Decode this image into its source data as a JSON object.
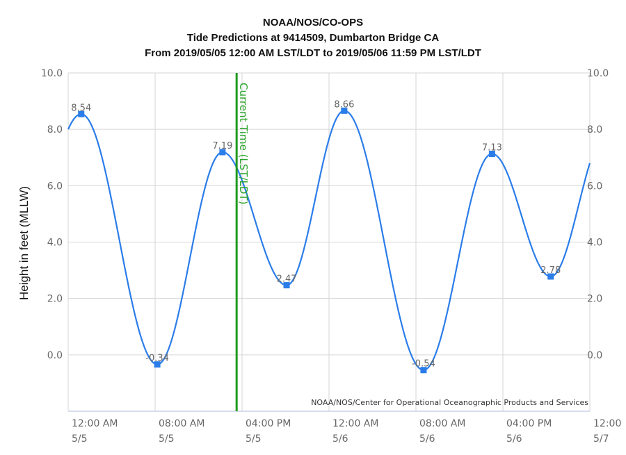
{
  "chart_data": {
    "type": "line",
    "title": [
      "NOAA/NOS/CO-OPS",
      "Tide Predictions at 9414509, Dumbarton Bridge CA",
      "From 2019/05/05 12:00 AM LST/LDT to 2019/05/06 11:59 PM LST/LDT"
    ],
    "ylabel": "Height in feet (MLLW)",
    "xlabel": "",
    "ylim": [
      -2.0,
      10.0
    ],
    "y_ticks": [
      "10.0",
      "8.0",
      "6.0",
      "4.0",
      "2.0",
      "0.0"
    ],
    "x_ticks": [
      {
        "time": "12:00 AM",
        "date": "5/5"
      },
      {
        "time": "08:00 AM",
        "date": "5/5"
      },
      {
        "time": "04:00 PM",
        "date": "5/5"
      },
      {
        "time": "12:00 AM",
        "date": "5/6"
      },
      {
        "time": "08:00 AM",
        "date": "5/6"
      },
      {
        "time": "04:00 PM",
        "date": "5/6"
      },
      {
        "time": "12:00",
        "date": "5/7"
      }
    ],
    "x_range_hours": [
      0,
      48
    ],
    "grid": true,
    "series": [
      {
        "color": "#2b7de9",
        "extrema": [
          {
            "hour": 1.2,
            "value": 8.54,
            "label": "8.54"
          },
          {
            "hour": 8.2,
            "value": -0.34,
            "label": "-0.34"
          },
          {
            "hour": 14.2,
            "value": 7.19,
            "label": "7.19"
          },
          {
            "hour": 20.1,
            "value": 2.47,
            "label": "2.47"
          },
          {
            "hour": 25.4,
            "value": 8.66,
            "label": "8.66"
          },
          {
            "hour": 32.7,
            "value": -0.54,
            "label": "-0.54"
          },
          {
            "hour": 39.0,
            "value": 7.13,
            "label": "7.13"
          },
          {
            "hour": 44.4,
            "value": 2.78,
            "label": "2.78"
          }
        ],
        "start_value": 8.0,
        "end_value": 6.8
      }
    ],
    "current_time": {
      "hour": 15.5,
      "label": "Current Time (LST/LDT)",
      "color": "#2aa52a"
    },
    "credit": "NOAA/NOS/Center for Operational Oceanographic Products and Services"
  }
}
